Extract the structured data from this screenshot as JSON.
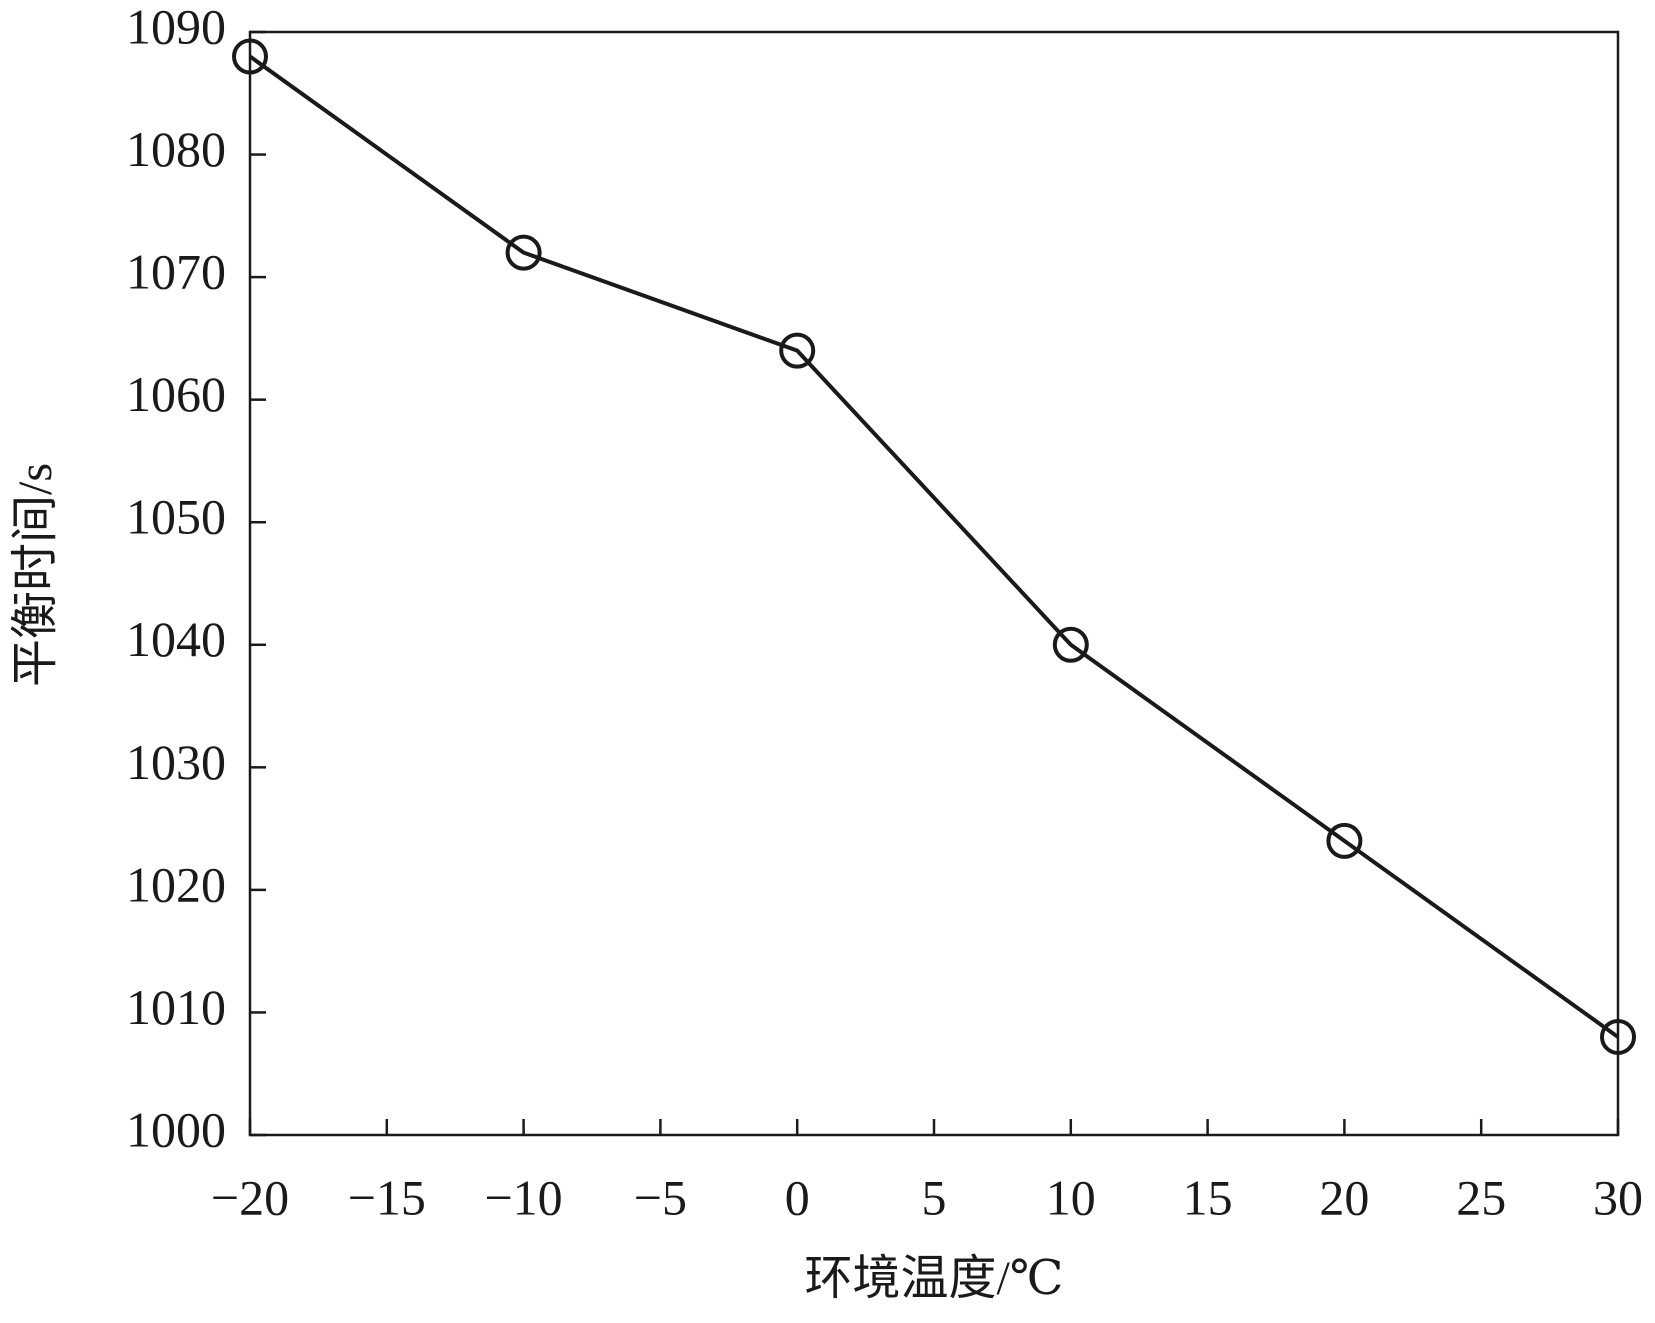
{
  "chart_data": {
    "type": "line",
    "x_label": "环境温度/℃",
    "y_label": "平衡时间/s",
    "x": [
      -20,
      -10,
      0,
      10,
      20,
      30
    ],
    "series": [
      {
        "color": "#1a1a1a",
        "marker": "circle",
        "values": [
          1088,
          1072,
          1064,
          1040,
          1024,
          1008
        ]
      }
    ],
    "xlim": [
      -20,
      30
    ],
    "xticks": [
      {
        "value": -20,
        "label": "−20"
      },
      {
        "value": -15,
        "label": "−15"
      },
      {
        "value": -10,
        "label": "−10"
      },
      {
        "value": -5,
        "label": "−5"
      },
      0,
      5,
      10,
      15,
      20,
      25,
      30
    ],
    "ylim": [
      1000,
      1090
    ],
    "yticks": [
      1000,
      1010,
      1020,
      1030,
      1040,
      1050,
      1060,
      1070,
      1080,
      1090
    ],
    "grid": false
  }
}
